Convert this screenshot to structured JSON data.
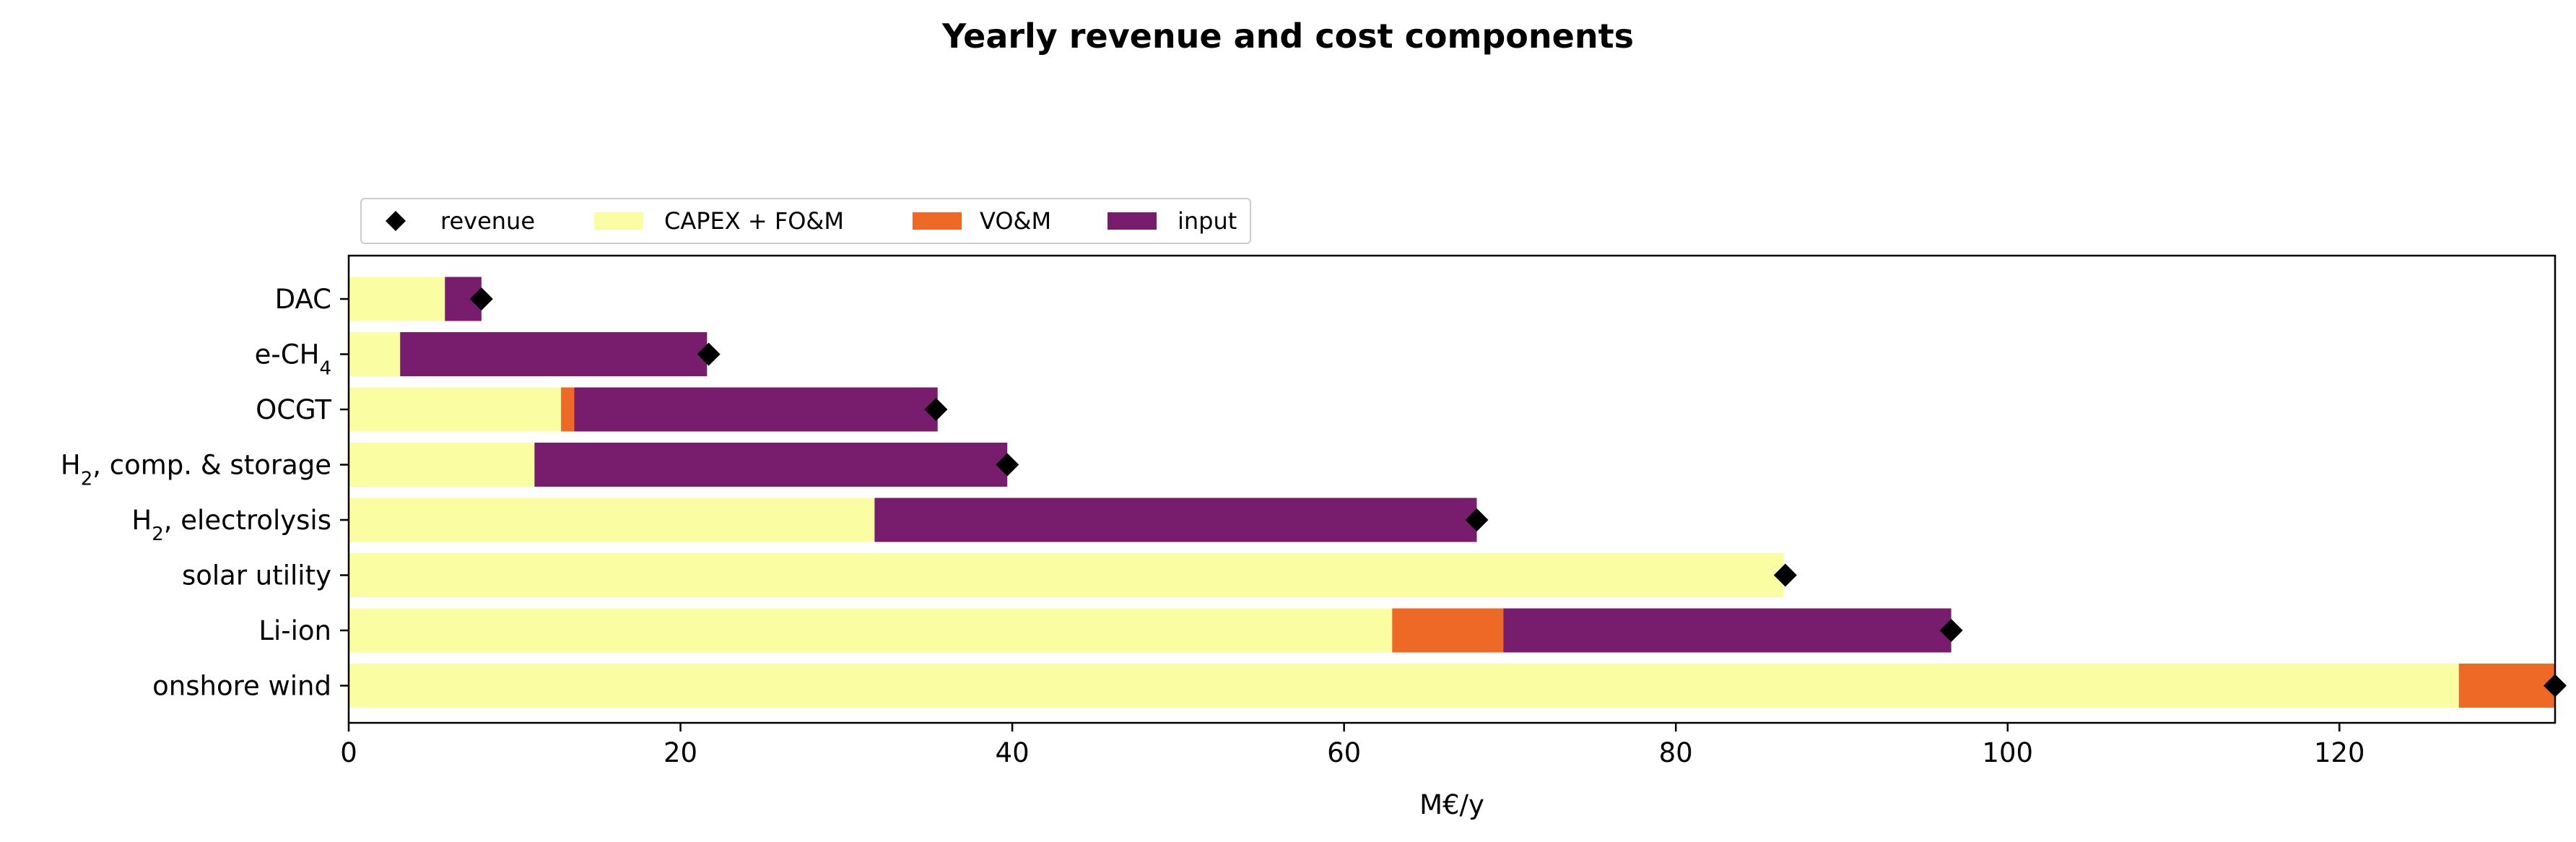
{
  "chart_data": {
    "type": "bar",
    "orientation": "horizontal",
    "stacked": true,
    "title": "Yearly revenue and cost components",
    "xlabel": "M€/y",
    "ylabel": "",
    "xlim": [
      0,
      133
    ],
    "xticks": [
      0,
      20,
      40,
      60,
      80,
      100,
      120
    ],
    "xtick_labels": [
      "0",
      "20",
      "40",
      "60",
      "80",
      "100",
      "120"
    ],
    "grid": false,
    "legend_position": "top-left, above plot",
    "categories": [
      {
        "pre": "DAC",
        "sub": "",
        "post": ""
      },
      {
        "pre": "e-CH",
        "sub": "4",
        "post": ""
      },
      {
        "pre": "OCGT",
        "sub": "",
        "post": ""
      },
      {
        "pre": "H",
        "sub": "2",
        "post": ", comp. & storage"
      },
      {
        "pre": "H",
        "sub": "2",
        "post": ", electrolysis"
      },
      {
        "pre": "solar utility",
        "sub": "",
        "post": ""
      },
      {
        "pre": "Li-ion",
        "sub": "",
        "post": ""
      },
      {
        "pre": "onshore wind",
        "sub": "",
        "post": ""
      }
    ],
    "series": [
      {
        "name": "CAPEX + FO&M",
        "color": "#fbfda3",
        "values": [
          5.8,
          3.1,
          12.8,
          11.2,
          31.7,
          86.5,
          62.9,
          127.2
        ]
      },
      {
        "name": "VO&M",
        "color": "#ed6925",
        "values": [
          0,
          0,
          0.8,
          0,
          0,
          0,
          6.7,
          5.8
        ]
      },
      {
        "name": "input",
        "color": "#781c6d",
        "values": [
          2.2,
          18.5,
          21.9,
          28.5,
          36.3,
          0,
          27.0,
          0
        ]
      }
    ],
    "markers": {
      "name": "revenue",
      "color": "#000000",
      "shape": "diamond",
      "values": [
        8.0,
        21.7,
        35.4,
        39.7,
        68.0,
        86.6,
        96.6,
        133.0
      ]
    }
  }
}
